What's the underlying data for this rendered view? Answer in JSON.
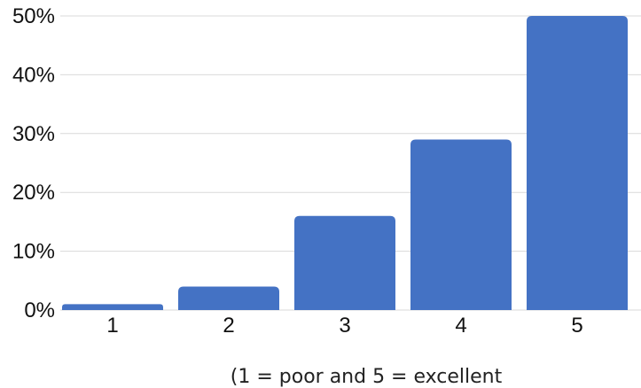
{
  "chart_data": {
    "type": "bar",
    "categories": [
      "1",
      "2",
      "3",
      "4",
      "5"
    ],
    "values": [
      1,
      4,
      16,
      29,
      50
    ],
    "title": "",
    "xlabel": "(1 = poor and 5 = excellent",
    "ylabel": "",
    "ylim": [
      0,
      50
    ],
    "y_ticks": [
      0,
      10,
      20,
      30,
      40,
      50
    ],
    "y_tick_format": "{v}%",
    "grid": true,
    "legend": "none",
    "bar_color": "#4472c4",
    "grid_color": "#d9d9d9"
  }
}
